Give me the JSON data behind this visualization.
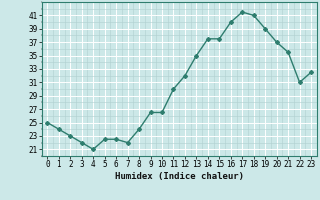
{
  "x": [
    0,
    1,
    2,
    3,
    4,
    5,
    6,
    7,
    8,
    9,
    10,
    11,
    12,
    13,
    14,
    15,
    16,
    17,
    18,
    19,
    20,
    21,
    22,
    23
  ],
  "y": [
    25,
    24,
    23,
    22,
    21,
    22.5,
    22.5,
    22,
    24,
    26.5,
    26.5,
    30,
    32,
    35,
    37.5,
    37.5,
    40,
    41.5,
    41,
    39,
    37,
    35.5,
    31,
    32.5
  ],
  "line_color": "#2e7d6e",
  "marker": "D",
  "marker_size": 2,
  "bg_color": "#cce8e8",
  "grid_color_major": "#b0d0d0",
  "grid_color_white": "#ffffff",
  "xlabel": "Humidex (Indice chaleur)",
  "ylim": [
    20,
    43
  ],
  "xlim": [
    -0.5,
    23.5
  ],
  "yticks": [
    21,
    23,
    25,
    27,
    29,
    31,
    33,
    35,
    37,
    39,
    41
  ],
  "xticks": [
    0,
    1,
    2,
    3,
    4,
    5,
    6,
    7,
    8,
    9,
    10,
    11,
    12,
    13,
    14,
    15,
    16,
    17,
    18,
    19,
    20,
    21,
    22,
    23
  ],
  "xlabel_fontsize": 6.5,
  "tick_fontsize": 5.5,
  "line_width": 1.0
}
